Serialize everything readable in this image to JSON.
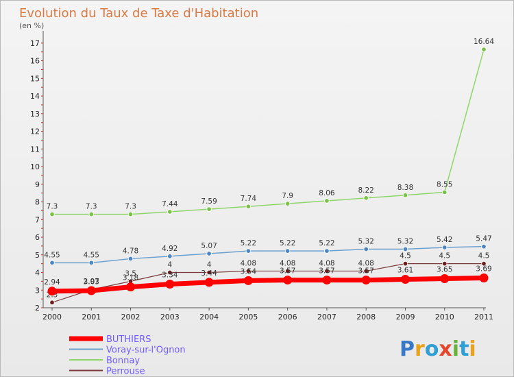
{
  "header": {
    "title": "Evolution du Taux de Taxe d'Habitation",
    "subtitle": "(en %)"
  },
  "logo": {
    "text": "Proxiti",
    "colors": [
      "#3a78c8",
      "#e8a21e",
      "#2f9fd6",
      "#e5472e",
      "#6ab23e",
      "#2f9fd6",
      "#e8a21e"
    ]
  },
  "chart_data": {
    "type": "line",
    "x": [
      "2000",
      "2001",
      "2002",
      "2003",
      "2004",
      "2005",
      "2006",
      "2007",
      "2008",
      "2009",
      "2010",
      "2011"
    ],
    "ylim": [
      2,
      17
    ],
    "yticks": [
      2,
      3,
      4,
      5,
      6,
      7,
      8,
      9,
      10,
      11,
      12,
      13,
      14,
      15,
      16,
      17
    ],
    "grid": false,
    "legend_position": "bottom-left",
    "series": [
      {
        "name": "Bonnay",
        "color": "#8fd66a",
        "marker": "#7cc24a",
        "width": 1.5,
        "values": [
          7.3,
          7.3,
          7.3,
          7.44,
          7.59,
          7.74,
          7.9,
          8.06,
          8.22,
          8.38,
          8.55,
          16.64
        ],
        "labels": [
          "7.3",
          "7.3",
          "7.3",
          "7.44",
          "7.59",
          "7.74",
          "7.9",
          "8.06",
          "8.22",
          "8.38",
          "8.55",
          "16.64"
        ]
      },
      {
        "name": "Voray-sur-l'Ognon",
        "color": "#6aa0cf",
        "marker": "#4f86bd",
        "width": 1.5,
        "values": [
          4.55,
          4.55,
          4.78,
          4.92,
          5.07,
          5.22,
          5.22,
          5.22,
          5.32,
          5.32,
          5.42,
          5.47
        ],
        "labels": [
          "4.55",
          "4.55",
          "4.78",
          "4.92",
          "5.07",
          "5.22",
          "5.22",
          "5.22",
          "5.32",
          "5.32",
          "5.42",
          "5.47"
        ]
      },
      {
        "name": "Perrouse",
        "color": "#7a3b3b",
        "marker": "#6b1f1f",
        "width": 1.2,
        "values": [
          2.3,
          3.03,
          3.5,
          4,
          4,
          4.08,
          4.08,
          4.08,
          4.08,
          4.5,
          4.5,
          4.5
        ],
        "labels": [
          "2.3",
          "3.03",
          "3.5",
          "4",
          "4",
          "4.08",
          "4.08",
          "4.08",
          "4.08",
          "4.5",
          "4.5",
          "4.5"
        ]
      },
      {
        "name": "BUTHIERS",
        "color": "#ff0000",
        "marker": "#ff0000",
        "width": 7,
        "values": [
          2.94,
          2.97,
          3.18,
          3.34,
          3.44,
          3.54,
          3.57,
          3.57,
          3.57,
          3.61,
          3.65,
          3.69
        ],
        "labels": [
          "2.94",
          "2.97",
          "3.18",
          "3.34",
          "3.44",
          "3.54",
          "3.57",
          "3.57",
          "3.57",
          "3.61",
          "3.65",
          "3.69"
        ]
      }
    ],
    "legend": [
      "BUTHIERS",
      "Voray-sur-l'Ognon",
      "Bonnay",
      "Perrouse"
    ]
  }
}
